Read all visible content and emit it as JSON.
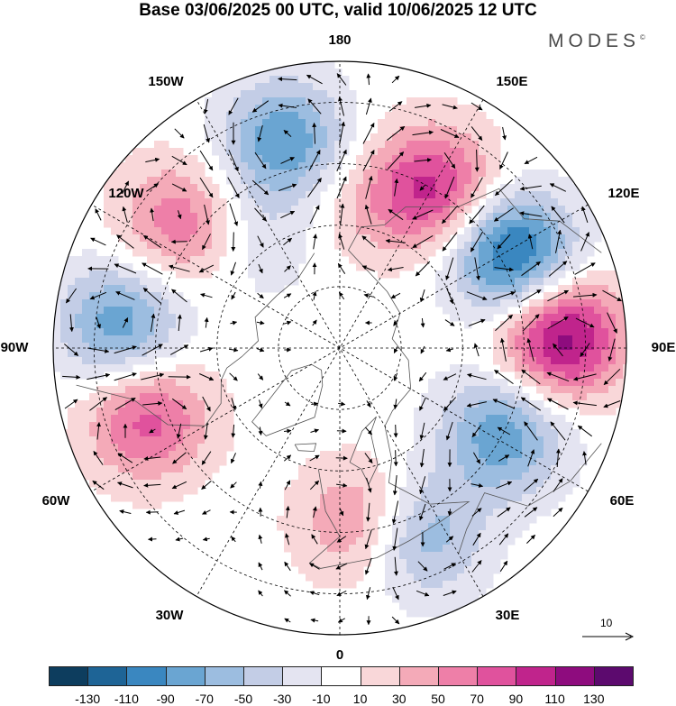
{
  "title": "Base 03/06/2025 00 UTC, valid 10/06/2025 12 UTC",
  "logo": {
    "text": "MODES",
    "mark": "©"
  },
  "longitude_labels": [
    "180",
    "150E",
    "120E",
    "90E",
    "60E",
    "30E",
    "0",
    "30W",
    "60W",
    "90W",
    "120W",
    "150W"
  ],
  "vector_scale": {
    "label": "10",
    "icon": "arrow-right-icon"
  },
  "colorbar": {
    "colors": [
      "#0d3d5e",
      "#1e6496",
      "#3a87c0",
      "#6aa5d2",
      "#9cbde0",
      "#c3cde6",
      "#e4e4f1",
      "#ffffff",
      "#f9d7d9",
      "#f4aab8",
      "#ee7fa8",
      "#e0529d",
      "#c0248c",
      "#8e0c7e",
      "#5c0a6e"
    ],
    "ticks": [
      "-130",
      "-110",
      "-90",
      "-70",
      "-50",
      "-30",
      "-10",
      "10",
      "30",
      "50",
      "70",
      "90",
      "110",
      "130"
    ]
  },
  "anomaly_centers": [
    {
      "lon": -165,
      "lat": 38,
      "value": -90
    },
    {
      "lon": 150,
      "lat": 45,
      "value": 95
    },
    {
      "lon": 118,
      "lat": 42,
      "value": -125
    },
    {
      "lon": 93,
      "lat": 36,
      "value": 125
    },
    {
      "lon": 62,
      "lat": 45,
      "value": -85
    },
    {
      "lon": 23,
      "lat": 40,
      "value": -70
    },
    {
      "lon": 7,
      "lat": 47,
      "value": 60
    },
    {
      "lon": -70,
      "lat": 40,
      "value": 80
    },
    {
      "lon": -96,
      "lat": 36,
      "value": -85
    },
    {
      "lon": -128,
      "lat": 40,
      "value": 65
    },
    {
      "lon": 176,
      "lat": 55,
      "value": 25
    },
    {
      "lon": -145,
      "lat": 58,
      "value": -25
    }
  ]
}
